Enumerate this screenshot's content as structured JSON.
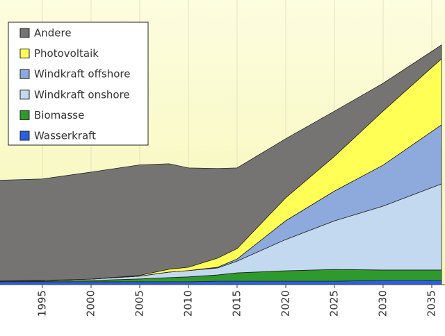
{
  "chart_data": {
    "type": "stacked_area",
    "x": [
      1990,
      1995,
      2000,
      2005,
      2008,
      2010,
      2013,
      2015,
      2020,
      2025,
      2030,
      2036
    ],
    "series": [
      {
        "name": "Wasserkraft",
        "color": "#2a5fe0",
        "values": [
          15,
          15,
          15,
          15,
          15,
          15,
          18,
          18,
          18,
          18,
          22,
          22
        ]
      },
      {
        "name": "Biomasse",
        "color": "#2e9a2e",
        "values": [
          4,
          4,
          7,
          15,
          22,
          26,
          33,
          44,
          55,
          62,
          55,
          55
        ]
      },
      {
        "name": "Windkraft onshore",
        "color": "#c2d9ef",
        "values": [
          0,
          4,
          7,
          15,
          29,
          33,
          37,
          62,
          165,
          256,
          337,
          454
        ]
      },
      {
        "name": "Windkraft offshore",
        "color": "#8eaadc",
        "values": [
          0,
          0,
          0,
          0,
          0,
          0,
          4,
          11,
          99,
          157,
          216,
          311
        ]
      },
      {
        "name": "Photovoltaik",
        "color": "#ffff55",
        "values": [
          0,
          0,
          0,
          4,
          15,
          18,
          48,
          55,
          121,
          183,
          285,
          348
        ]
      },
      {
        "name": "Andere",
        "color": "#767473",
        "values": [
          530,
          534,
          564,
          582,
          556,
          523,
          472,
          425,
          311,
          238,
          146,
          73
        ]
      }
    ],
    "xlim": [
      1990.64,
      2036.36
    ],
    "ylim": [
      0,
      1500
    ],
    "xticks": [
      1995,
      2000,
      2005,
      2010,
      2015,
      2020,
      2025,
      2030,
      2035
    ],
    "grid": true,
    "legend": "upper left"
  }
}
